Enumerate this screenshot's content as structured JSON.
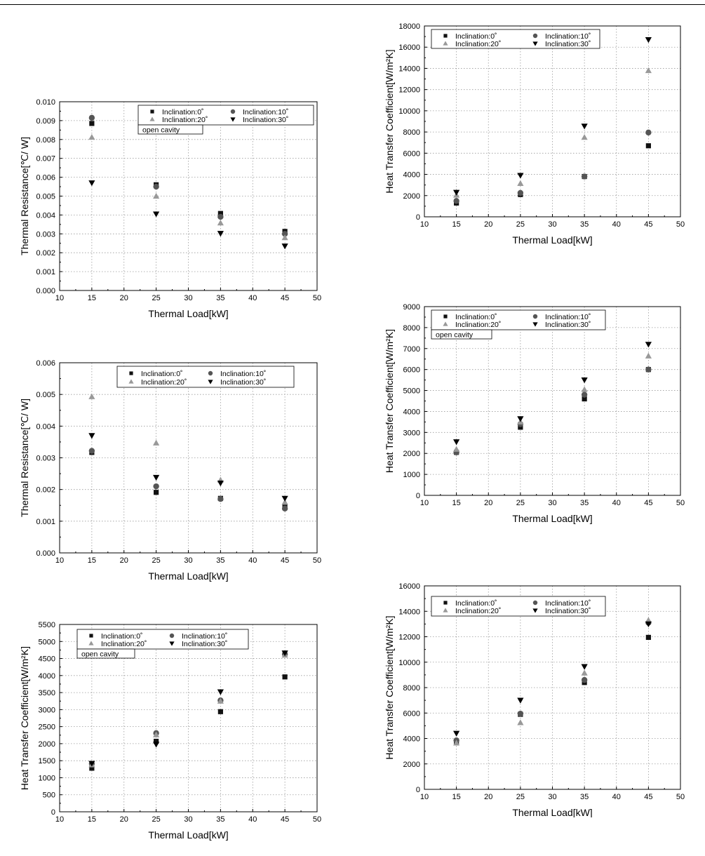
{
  "chart_data": [
    {
      "type": "scatter",
      "xlabel": "Thermal Load[kW]",
      "ylabel": "Thermal Resistance[℃/ W]",
      "xlim": [
        10,
        50
      ],
      "ylim": [
        0.0,
        0.01
      ],
      "xticks": [
        "10",
        "15",
        "20",
        "25",
        "30",
        "35",
        "40",
        "45",
        "50"
      ],
      "yticks": [
        "0.000",
        "0.001",
        "0.002",
        "0.003",
        "0.004",
        "0.005",
        "0.006",
        "0.007",
        "0.008",
        "0.009",
        "0.010"
      ],
      "grid": true,
      "legend_position": "top-center",
      "annotation": "open cavity",
      "series": [
        {
          "name": "Inclination:0˚",
          "marker": "square",
          "color": "#111111",
          "x": [
            15,
            25,
            35,
            45
          ],
          "y": [
            0.00885,
            0.0056,
            0.00408,
            0.00313
          ]
        },
        {
          "name": "Inclination:10˚",
          "marker": "circle",
          "color": "#555555",
          "x": [
            15,
            25,
            35,
            45
          ],
          "y": [
            0.00915,
            0.0055,
            0.0039,
            0.003
          ]
        },
        {
          "name": "Inclination:20˚",
          "marker": "triangle-up",
          "color": "#999999",
          "x": [
            15,
            25,
            35,
            45
          ],
          "y": [
            0.00812,
            0.005,
            0.00358,
            0.0028
          ]
        },
        {
          "name": "Inclination:30˚",
          "marker": "triangle-down",
          "color": "#000000",
          "x": [
            15,
            25,
            35,
            45
          ],
          "y": [
            0.0057,
            0.00405,
            0.00302,
            0.00235
          ]
        }
      ]
    },
    {
      "type": "scatter",
      "xlabel": "Thermal Load[kW]",
      "ylabel": "Heat Transfer Coefficient[W/m²K]",
      "xlim": [
        10,
        50
      ],
      "ylim": [
        0,
        18000
      ],
      "xticks": [
        "10",
        "15",
        "20",
        "25",
        "30",
        "35",
        "40",
        "45",
        "50"
      ],
      "yticks": [
        "0",
        "2000",
        "4000",
        "6000",
        "8000",
        "10000",
        "12000",
        "14000",
        "16000",
        "18000"
      ],
      "grid": true,
      "legend_position": "top-left",
      "series": [
        {
          "name": "Inclination:0˚",
          "marker": "square",
          "color": "#111111",
          "x": [
            15,
            25,
            35,
            45
          ],
          "y": [
            1300,
            2100,
            3800,
            6700
          ]
        },
        {
          "name": "Inclination:10˚",
          "marker": "circle",
          "color": "#555555",
          "x": [
            15,
            25,
            35,
            45
          ],
          "y": [
            1500,
            2250,
            3800,
            7950
          ]
        },
        {
          "name": "Inclination:20˚",
          "marker": "triangle-up",
          "color": "#999999",
          "x": [
            15,
            25,
            35,
            45
          ],
          "y": [
            2050,
            3150,
            7500,
            13800
          ]
        },
        {
          "name": "Inclination:30˚",
          "marker": "triangle-down",
          "color": "#000000",
          "x": [
            15,
            25,
            35,
            45
          ],
          "y": [
            2300,
            3900,
            8550,
            16700
          ]
        }
      ]
    },
    {
      "type": "scatter",
      "xlabel": "Thermal Load[kW]",
      "ylabel": "Thermal Resistance[℃/ W]",
      "xlim": [
        10,
        50
      ],
      "ylim": [
        0.0,
        0.006
      ],
      "xticks": [
        "10",
        "15",
        "20",
        "25",
        "30",
        "35",
        "40",
        "45",
        "50"
      ],
      "yticks": [
        "0.000",
        "0.001",
        "0.002",
        "0.003",
        "0.004",
        "0.005",
        "0.006"
      ],
      "grid": true,
      "legend_position": "top-center",
      "series": [
        {
          "name": "Inclination:0˚",
          "marker": "square",
          "color": "#111111",
          "x": [
            15,
            25,
            35,
            45
          ],
          "y": [
            0.00317,
            0.00191,
            0.00172,
            0.00145
          ]
        },
        {
          "name": "Inclination:10˚",
          "marker": "circle",
          "color": "#555555",
          "x": [
            15,
            25,
            35,
            45
          ],
          "y": [
            0.00322,
            0.0021,
            0.0017,
            0.0014
          ]
        },
        {
          "name": "Inclination:20˚",
          "marker": "triangle-up",
          "color": "#999999",
          "x": [
            15,
            25,
            35,
            45
          ],
          "y": [
            0.00493,
            0.00347,
            0.0023,
            0.0016
          ]
        },
        {
          "name": "Inclination:30˚",
          "marker": "triangle-down",
          "color": "#000000",
          "x": [
            15,
            25,
            35,
            45
          ],
          "y": [
            0.0037,
            0.00238,
            0.0022,
            0.00172
          ]
        }
      ]
    },
    {
      "type": "scatter",
      "xlabel": "Thermal Load[kW]",
      "ylabel": "Heat Transfer Coefficient[W/m²K]",
      "xlim": [
        10,
        50
      ],
      "ylim": [
        0,
        9000
      ],
      "xticks": [
        "10",
        "15",
        "20",
        "25",
        "30",
        "35",
        "40",
        "45",
        "50"
      ],
      "yticks": [
        "0",
        "1000",
        "2000",
        "3000",
        "4000",
        "5000",
        "6000",
        "7000",
        "8000",
        "9000"
      ],
      "grid": true,
      "legend_position": "top-left",
      "annotation": "open cavity",
      "series": [
        {
          "name": "Inclination:0˚",
          "marker": "square",
          "color": "#111111",
          "x": [
            15,
            25,
            35,
            45
          ],
          "y": [
            2050,
            3250,
            4600,
            6000
          ]
        },
        {
          "name": "Inclination:10˚",
          "marker": "circle",
          "color": "#555555",
          "x": [
            15,
            25,
            35,
            45
          ],
          "y": [
            2050,
            3400,
            4800,
            6000
          ]
        },
        {
          "name": "Inclination:20˚",
          "marker": "triangle-up",
          "color": "#999999",
          "x": [
            15,
            25,
            35,
            45
          ],
          "y": [
            2200,
            3500,
            5050,
            6650
          ]
        },
        {
          "name": "Inclination:30˚",
          "marker": "triangle-down",
          "color": "#000000",
          "x": [
            15,
            25,
            35,
            45
          ],
          "y": [
            2550,
            3650,
            5500,
            7200
          ]
        }
      ]
    },
    {
      "type": "scatter",
      "xlabel": "Thermal Load[kW]",
      "ylabel": "Heat Transfer Coefficient[W/m²K]",
      "xlim": [
        10,
        50
      ],
      "ylim": [
        0,
        5500
      ],
      "xticks": [
        "10",
        "15",
        "20",
        "25",
        "30",
        "35",
        "40",
        "45",
        "50"
      ],
      "yticks": [
        "0",
        "500",
        "1000",
        "1500",
        "2000",
        "2500",
        "3000",
        "3500",
        "4000",
        "4500",
        "5000",
        "5500"
      ],
      "grid": true,
      "legend_position": "top-left",
      "annotation": "open cavity",
      "series": [
        {
          "name": "Inclination:0˚",
          "marker": "square",
          "color": "#111111",
          "x": [
            15,
            25,
            35,
            45
          ],
          "y": [
            1280,
            2070,
            2940,
            3960
          ]
        },
        {
          "name": "Inclination:10˚",
          "marker": "circle",
          "color": "#555555",
          "x": [
            15,
            25,
            35,
            45
          ],
          "y": [
            1410,
            2310,
            3270,
            4630
          ]
        },
        {
          "name": "Inclination:20˚",
          "marker": "triangle-up",
          "color": "#999999",
          "x": [
            15,
            25,
            35,
            45
          ],
          "y": [
            1380,
            2260,
            3250,
            4600
          ]
        },
        {
          "name": "Inclination:30˚",
          "marker": "triangle-down",
          "color": "#000000",
          "x": [
            15,
            25,
            35,
            45
          ],
          "y": [
            1420,
            1980,
            3520,
            4660
          ]
        }
      ]
    },
    {
      "type": "scatter",
      "xlabel": "Thermal Load[kW]",
      "ylabel": "Heat Transfer Coefficient[W/m²K]",
      "xlim": [
        10,
        50
      ],
      "ylim": [
        0,
        16000
      ],
      "xticks": [
        "10",
        "15",
        "20",
        "25",
        "30",
        "35",
        "40",
        "45",
        "50"
      ],
      "yticks": [
        "0",
        "2000",
        "4000",
        "6000",
        "8000",
        "10000",
        "12000",
        "14000",
        "16000"
      ],
      "grid": true,
      "legend_position": "top-left",
      "series": [
        {
          "name": "Inclination:0˚",
          "marker": "square",
          "color": "#111111",
          "x": [
            15,
            25,
            35,
            45
          ],
          "y": [
            3700,
            5900,
            8400,
            11950
          ]
        },
        {
          "name": "Inclination:10˚",
          "marker": "circle",
          "color": "#555555",
          "x": [
            15,
            25,
            35,
            45
          ],
          "y": [
            3850,
            5950,
            8600,
            13100
          ]
        },
        {
          "name": "Inclination:20˚",
          "marker": "triangle-up",
          "color": "#999999",
          "x": [
            15,
            25,
            35,
            45
          ],
          "y": [
            3650,
            5250,
            9150,
            13300
          ]
        },
        {
          "name": "Inclination:30˚",
          "marker": "triangle-down",
          "color": "#000000",
          "x": [
            15,
            25,
            35,
            45
          ],
          "y": [
            4400,
            7000,
            9650,
            13000
          ]
        }
      ]
    }
  ]
}
